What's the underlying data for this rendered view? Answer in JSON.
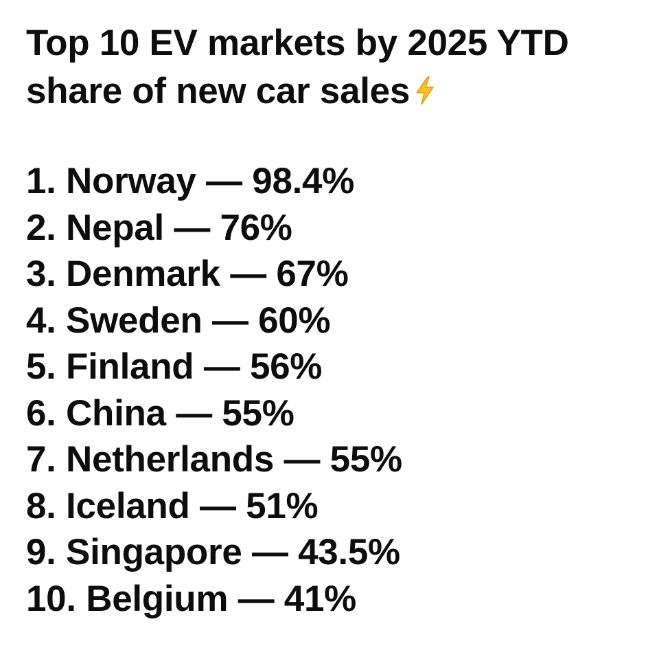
{
  "title": {
    "line1": "Top 10 EV markets by 2025 YTD",
    "line2": "share of new car sales",
    "icon": "lightning-bolt-icon"
  },
  "separator": "—",
  "items": [
    {
      "rank": "1.",
      "country": "Norway",
      "share": "98.4%"
    },
    {
      "rank": "2.",
      "country": "Nepal",
      "share": "76%"
    },
    {
      "rank": "3.",
      "country": "Denmark",
      "share": "67%"
    },
    {
      "rank": "4.",
      "country": "Sweden",
      "share": "60%"
    },
    {
      "rank": "5.",
      "country": "Finland",
      "share": "56%"
    },
    {
      "rank": "6.",
      "country": "China",
      "share": "55%"
    },
    {
      "rank": "7.",
      "country": "Netherlands",
      "share": "55%"
    },
    {
      "rank": "8.",
      "country": "Iceland",
      "share": "51%"
    },
    {
      "rank": "9.",
      "country": "Singapore",
      "share": "43.5%"
    },
    {
      "rank": "10.",
      "country": "Belgium",
      "share": "41%"
    }
  ],
  "colors": {
    "text": "#0d0d0d",
    "background": "#ffffff",
    "bolt_fill": "#f7c51b",
    "bolt_stroke": "#e09a0c"
  }
}
